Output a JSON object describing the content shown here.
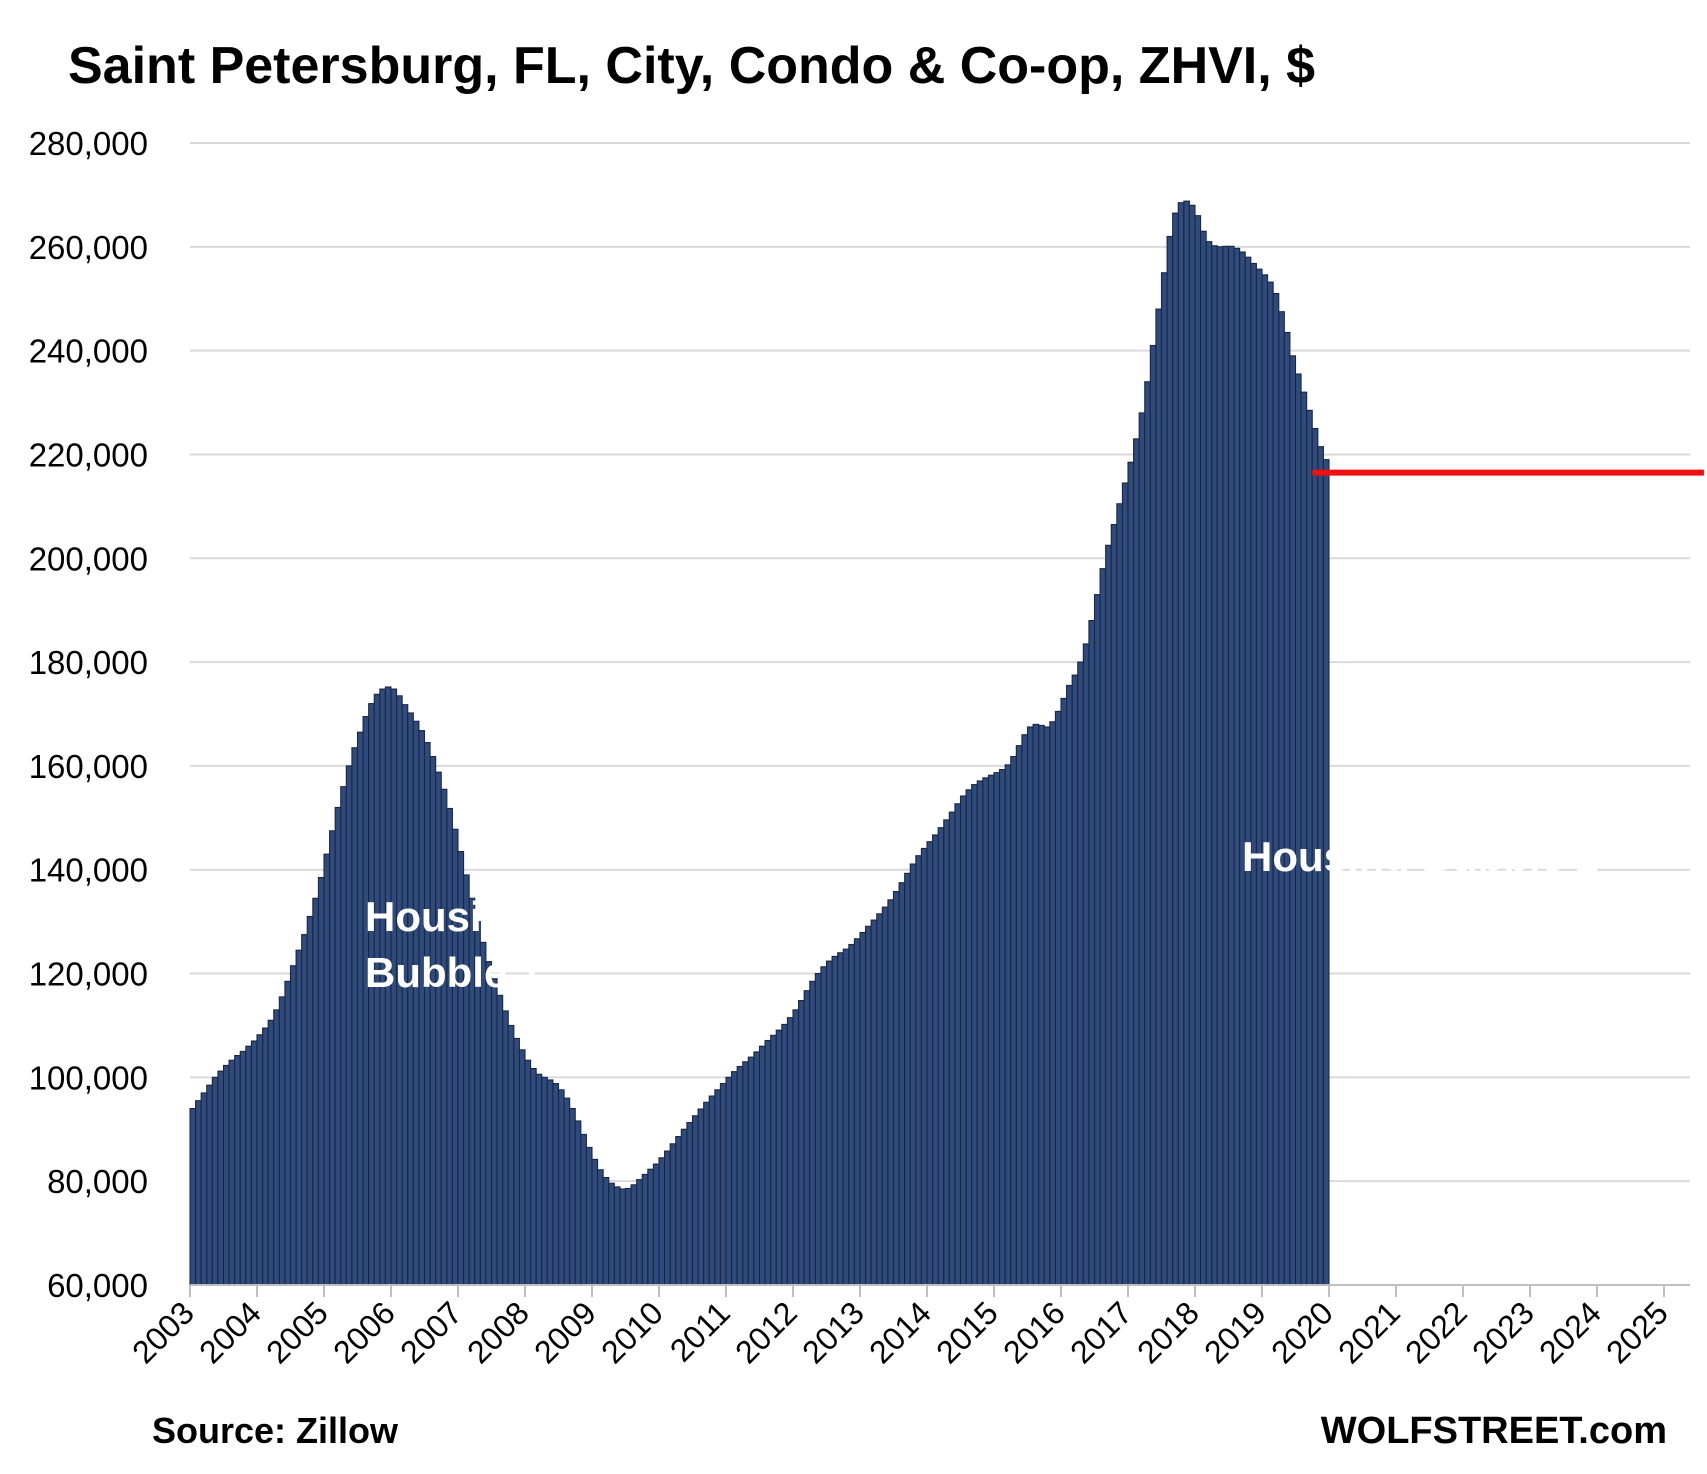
{
  "chart_data": {
    "type": "bar",
    "title": "Saint Petersburg, FL, City, Condo & Co-op, ZHVI, $",
    "xlabel": "",
    "ylabel": "",
    "ylim": [
      60000,
      280000
    ],
    "yticks": [
      "60,000",
      "80,000",
      "100,000",
      "120,000",
      "140,000",
      "160,000",
      "180,000",
      "200,000",
      "220,000",
      "240,000",
      "260,000",
      "280,000"
    ],
    "xticks": [
      "2003",
      "2004",
      "2005",
      "2006",
      "2007",
      "2008",
      "2009",
      "2010",
      "2011",
      "2012",
      "2013",
      "2014",
      "2015",
      "2016",
      "2017",
      "2018",
      "2019",
      "2020",
      "2021",
      "2022",
      "2023",
      "2024",
      "2025"
    ],
    "grid": true,
    "bar_color": "#2f4a7c",
    "reference_line": {
      "value": 216500,
      "color": "#ee1111",
      "from": "2019-10",
      "to": "2025-06"
    },
    "annotations": [
      {
        "lines": [
          "Housing",
          "Bubble 1"
        ]
      },
      {
        "lines": [
          "Housing Bubble 2"
        ]
      }
    ],
    "series": [
      {
        "start": "2003-01",
        "values": [
          94000,
          95500,
          97000,
          98500,
          100000,
          101200,
          102300,
          103300,
          104200,
          105000,
          106000,
          107000,
          108200,
          109500,
          111000,
          113000,
          115500,
          118500,
          121500,
          124500,
          127500,
          131000,
          134500,
          138500,
          143000,
          147500,
          152000,
          156000,
          160000,
          163500,
          166500,
          169500,
          172000,
          173800,
          174800,
          175200,
          174800,
          173500,
          171800,
          170200,
          168600,
          166800,
          164500,
          161800,
          158800,
          155500,
          151800,
          147800,
          143500,
          139000,
          134500,
          130000,
          126000,
          122300,
          119000,
          115800,
          112800,
          110000,
          107500,
          105300,
          103300,
          101700,
          100600,
          100000,
          99500,
          98800,
          97600,
          96000,
          94000,
          91600,
          89000,
          86500,
          84200,
          82200,
          80700,
          79600,
          78900,
          78500,
          78600,
          79300,
          80300,
          81300,
          82300,
          83300,
          84500,
          85800,
          87200,
          88600,
          90000,
          91300,
          92600,
          93900,
          95200,
          96400,
          97600,
          98800,
          100000,
          101100,
          102100,
          103000,
          103900,
          104900,
          106000,
          107100,
          108100,
          109100,
          110200,
          111500,
          113000,
          114800,
          116700,
          118500,
          120000,
          121300,
          122400,
          123300,
          124000,
          124700,
          125600,
          126700,
          127900,
          129100,
          130300,
          131500,
          132800,
          134200,
          135800,
          137500,
          139300,
          141100,
          142700,
          144100,
          145400,
          146700,
          148100,
          149600,
          151100,
          152700,
          154200,
          155400,
          156400,
          157100,
          157700,
          158200,
          158700,
          159300,
          160200,
          161800,
          163900,
          166000,
          167500,
          168000,
          167800,
          167500,
          168500,
          170500,
          173000,
          175500,
          177500,
          180000,
          183500,
          188000,
          193000,
          198000,
          202500,
          206500,
          210500,
          214500,
          218500,
          223000,
          228000,
          234000,
          241000,
          248000,
          255000,
          262000,
          266500,
          268500,
          268800,
          268000,
          266000,
          263000,
          261000,
          260200,
          260000,
          260100,
          260100,
          259700,
          259000,
          258000,
          256800,
          255700,
          254600,
          253200,
          251000,
          247500,
          243500,
          239000,
          235500,
          232000,
          228500,
          225000,
          221500,
          219000
        ]
      }
    ]
  },
  "footer": {
    "source": "Source: Zillow",
    "brand": "WOLFSTREET.com"
  }
}
